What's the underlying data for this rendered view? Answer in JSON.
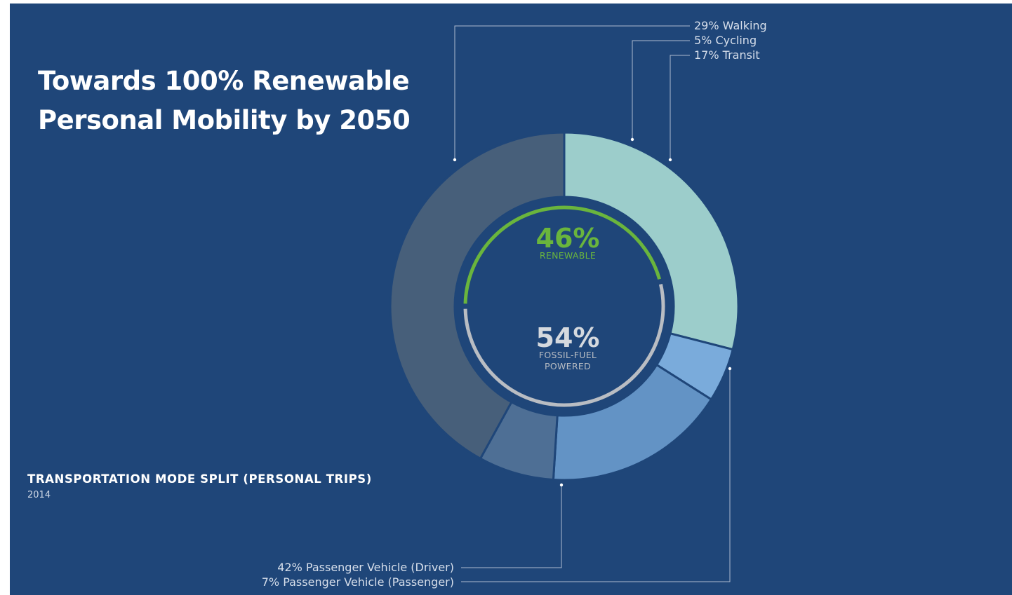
{
  "headline": {
    "line1": "Towards 100% Renewable",
    "line2": "Personal Mobility by 2050"
  },
  "caption": {
    "title": "TRANSPORTATION MODE SPLIT (PERSONAL TRIPS)",
    "year": "2014"
  },
  "chart_data": {
    "type": "pie",
    "variant": "donut",
    "title": "TRANSPORTATION MODE SPLIT (PERSONAL TRIPS)",
    "subtitle": "2014",
    "slices": [
      {
        "label": "29% Walking",
        "name": "Walking",
        "value": 29,
        "color": "#9ccdcb"
      },
      {
        "label": "5% Cycling",
        "name": "Cycling",
        "value": 5,
        "color": "#7aabdb"
      },
      {
        "label": "17% Transit",
        "name": "Transit",
        "value": 17,
        "color": "#6393c5"
      },
      {
        "label": "7% Passenger Vehicle (Passenger)",
        "name": "Passenger Vehicle (Passenger)",
        "value": 7,
        "color": "#4e6f95"
      },
      {
        "label": "42% Passenger Vehicle (Driver)",
        "name": "Passenger Vehicle (Driver)",
        "value": 42,
        "color": "#475f7a"
      }
    ],
    "inner_split": [
      {
        "pct_label": "46%",
        "caption": "RENEWABLE",
        "value": 46,
        "color": "#6ab53d"
      },
      {
        "pct_label": "54%",
        "caption_lines": [
          "FOSSIL-FUEL",
          "POWERED"
        ],
        "value": 54,
        "color": "#b9bdc3"
      }
    ]
  }
}
